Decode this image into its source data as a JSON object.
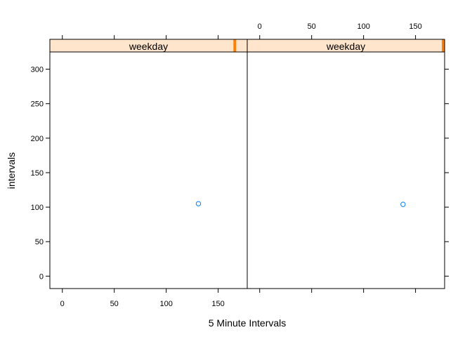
{
  "chart_data": {
    "type": "scatter",
    "xlabel": "5 Minute Intervals",
    "ylabel": "intervals",
    "xlim": [
      -12,
      178
    ],
    "ylim": [
      -18,
      325
    ],
    "x_ticks": [
      0,
      50,
      100,
      150
    ],
    "y_ticks": [
      0,
      50,
      100,
      150,
      200,
      250,
      300
    ],
    "point_color": "#0080ff",
    "strip_bg_color": "#ffe5cc",
    "strip_indicator_color": "#ff8000",
    "panels": [
      {
        "strip_label": "weekday",
        "strip_level": 0.93,
        "points": [
          {
            "x": 131,
            "y": 105
          }
        ]
      },
      {
        "strip_label": "weekday",
        "strip_level": 1.0,
        "points": [
          {
            "x": 138,
            "y": 104
          }
        ]
      }
    ]
  }
}
